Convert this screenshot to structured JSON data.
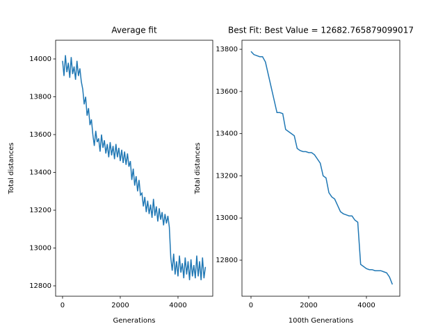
{
  "chart_data": [
    {
      "type": "line",
      "title": "Average fit",
      "x_label": "Generations",
      "y_label": "Total distances",
      "x": [
        0,
        50,
        100,
        150,
        200,
        250,
        300,
        350,
        400,
        450,
        500,
        550,
        600,
        650,
        700,
        750,
        800,
        850,
        900,
        950,
        1000,
        1050,
        1100,
        1150,
        1200,
        1250,
        1300,
        1350,
        1400,
        1450,
        1500,
        1550,
        1600,
        1650,
        1700,
        1750,
        1800,
        1850,
        1900,
        1950,
        2000,
        2050,
        2100,
        2150,
        2200,
        2250,
        2300,
        2350,
        2400,
        2450,
        2500,
        2550,
        2600,
        2650,
        2700,
        2750,
        2800,
        2850,
        2900,
        2950,
        3000,
        3050,
        3100,
        3150,
        3200,
        3250,
        3300,
        3350,
        3400,
        3450,
        3500,
        3550,
        3600,
        3650,
        3700,
        3750,
        3800,
        3850,
        3900,
        3950,
        4000,
        4050,
        4100,
        4150,
        4200,
        4250,
        4300,
        4350,
        4400,
        4450,
        4500,
        4550,
        4600,
        4650,
        4700,
        4750,
        4800,
        4850,
        4900,
        4950
      ],
      "series": [
        {
          "name": "Average fit",
          "color": "#1f77b4",
          "values": [
            13990,
            13910,
            14020,
            13930,
            13980,
            13900,
            14010,
            13920,
            13960,
            13890,
            13990,
            13910,
            13950,
            13880,
            13840,
            13760,
            13800,
            13700,
            13740,
            13650,
            13680,
            13600,
            13540,
            13620,
            13560,
            13580,
            13510,
            13600,
            13530,
            13570,
            13500,
            13550,
            13480,
            13560,
            13490,
            13540,
            13470,
            13550,
            13480,
            13530,
            13460,
            13520,
            13450,
            13510,
            13440,
            13500,
            13430,
            13460,
            13360,
            13420,
            13330,
            13380,
            13300,
            13360,
            13280,
            13290,
            13220,
            13270,
            13190,
            13250,
            13180,
            13230,
            13160,
            13260,
            13170,
            13220,
            13140,
            13210,
            13150,
            13190,
            13120,
            13180,
            13130,
            13170,
            13110,
            12950,
            12880,
            12970,
            12860,
            12930,
            12850,
            12960,
            12870,
            12920,
            12840,
            12950,
            12860,
            12930,
            12830,
            12940,
            12850,
            12910,
            12840,
            12960,
            12850,
            12930,
            12830,
            12950,
            12840,
            12900
          ]
        }
      ],
      "xlim": [
        -240,
        5205
      ],
      "ylim": [
        12745,
        14099
      ],
      "xticks": [
        0,
        2000,
        4000
      ],
      "yticks": [
        12800,
        13000,
        13200,
        13400,
        13600,
        13800,
        14000
      ]
    },
    {
      "type": "line",
      "title": "Best Fit: Best Value = 12682.765879099017",
      "x_label": "100th Generations",
      "y_label": "Total distances",
      "x": [
        0,
        100,
        200,
        300,
        400,
        500,
        600,
        700,
        800,
        900,
        1000,
        1100,
        1200,
        1300,
        1400,
        1500,
        1600,
        1700,
        1800,
        1900,
        2000,
        2100,
        2200,
        2300,
        2400,
        2500,
        2600,
        2700,
        2800,
        2900,
        3000,
        3100,
        3200,
        3300,
        3400,
        3500,
        3600,
        3700,
        3800,
        3900,
        4000,
        4100,
        4200,
        4300,
        4400,
        4500,
        4600,
        4700,
        4800,
        4900
      ],
      "series": [
        {
          "name": "Best Fit",
          "color": "#1f77b4",
          "values": [
            13790,
            13775,
            13770,
            13765,
            13765,
            13740,
            13680,
            13620,
            13560,
            13500,
            13500,
            13495,
            13420,
            13410,
            13400,
            13390,
            13330,
            13320,
            13315,
            13315,
            13310,
            13310,
            13300,
            13280,
            13260,
            13200,
            13190,
            13120,
            13100,
            13090,
            13060,
            13030,
            13020,
            13015,
            13010,
            13010,
            12990,
            12980,
            12780,
            12770,
            12760,
            12755,
            12755,
            12750,
            12750,
            12750,
            12745,
            12740,
            12720,
            12685
          ]
        }
      ],
      "xlim": [
        -313,
        5157
      ],
      "ylim": [
        12629,
        13843
      ],
      "xticks": [
        0,
        2000,
        4000
      ],
      "yticks": [
        12800,
        13000,
        13200,
        13400,
        13600,
        13800
      ]
    }
  ]
}
